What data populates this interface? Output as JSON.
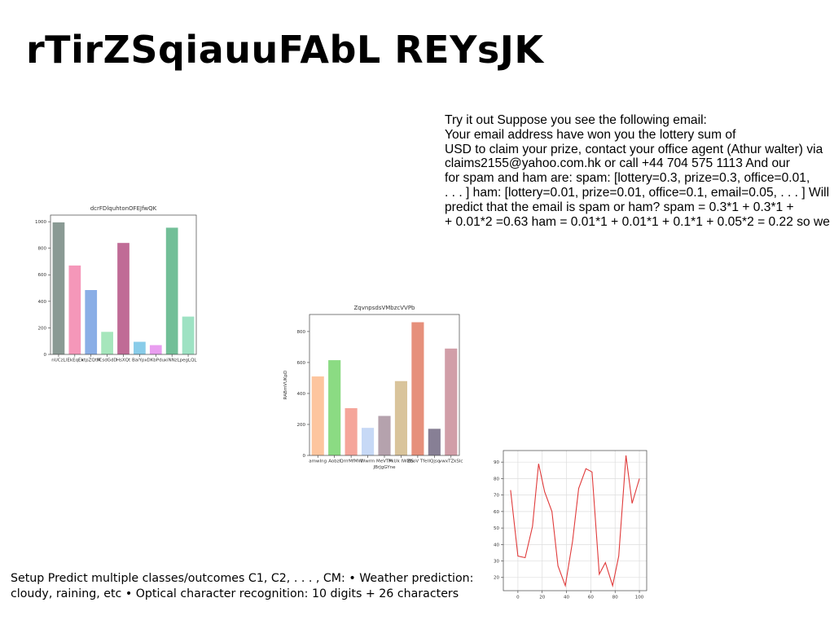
{
  "slide": {
    "title": "rTirZSqiauuFAbL REYsJK",
    "email_lines": [
      "Try it out Suppose you see the following email:",
      "Your email address have won you the lottery sum of",
      "USD to claim your prize, contact your office agent (Athur walter) via",
      "claims2155@yahoo.com.hk or call +44 704 575 1113 And our",
      "for spam and ham are: spam: [lottery=0.3, prize=0.3, office=0.01,",
      ". . . ] ham: [lottery=0.01, prize=0.01, office=0.1, email=0.05, . . . ] Will",
      "predict that the email is spam or ham? spam = 0.3*1 + 0.3*1 +",
      "+ 0.01*2 =0.63 ham = 0.01*1 + 0.01*1 + 0.1*1 + 0.05*2 = 0.22 so we"
    ],
    "setup_lines": [
      "Setup Predict multiple classes/outcomes C1, C2, . . . , CM: • Weather prediction:",
      "cloudy, raining, etc • Optical character recognition: 10 digits + 26 characters"
    ]
  },
  "chart_data": [
    {
      "type": "bar",
      "title": "dcrFDlquhtonOFEJfwQK",
      "xlabel": "",
      "ylabel": "",
      "categories": [
        "nUCzL",
        "lEkEqEk",
        "xtpZQtM",
        "fCsdGdD",
        "HsXQt",
        "BaiYpx",
        "DKbPdu",
        "xiNNzL",
        "pegLQL"
      ],
      "values": [
        995,
        670,
        485,
        170,
        840,
        95,
        70,
        955,
        285
      ],
      "colors": [
        "#8a9a94",
        "#f597b9",
        "#8aaee6",
        "#a6e6bc",
        "#c06b96",
        "#89cce9",
        "#e99ef0",
        "#72bf98",
        "#9ee2c3"
      ],
      "ylim": [
        0,
        1050
      ],
      "yticks": [
        0,
        200,
        400,
        600,
        800,
        1000
      ]
    },
    {
      "type": "bar",
      "title": "ZqvnpsdsVMbzcVVPb",
      "xlabel": "JBrJgGYne",
      "ylabel": "RABmVUKpD",
      "categories": [
        "amwIng",
        "Aobzl",
        "QrrrMfMW",
        "Wwrm",
        "MeVTM",
        "PkUk IWMS",
        "ZboV Tfel",
        "IQjsq",
        "vwxTZkSlc"
      ],
      "values": [
        510,
        615,
        305,
        178,
        255,
        480,
        860,
        172,
        690
      ],
      "colors": [
        "#fdc59e",
        "#8bdb83",
        "#f5a59a",
        "#c7d9f6",
        "#b5a2ad",
        "#d9c49b",
        "#e6907b",
        "#877f95",
        "#d19ea8"
      ],
      "ylim": [
        0,
        910
      ],
      "yticks": [
        0,
        200,
        400,
        600,
        800
      ]
    },
    {
      "type": "line",
      "title": "",
      "xlabel": "",
      "ylabel": "",
      "grid": true,
      "series": [
        {
          "color": "#e03b3b",
          "x": [
            -6,
            0,
            6,
            12,
            17,
            22,
            28,
            33,
            39,
            45,
            50,
            56,
            61,
            67,
            72,
            78,
            83,
            89,
            94,
            100
          ],
          "y": [
            73,
            33,
            32,
            51,
            89,
            72,
            60,
            27,
            15,
            42,
            74,
            86,
            84,
            22,
            29,
            15,
            33,
            94,
            65,
            80
          ]
        }
      ],
      "xlim": [
        -12,
        106
      ],
      "ylim": [
        12,
        97
      ],
      "xticks": [
        0,
        20,
        40,
        60,
        80,
        100
      ],
      "yticks": [
        20,
        30,
        40,
        50,
        60,
        70,
        80,
        90
      ]
    }
  ]
}
